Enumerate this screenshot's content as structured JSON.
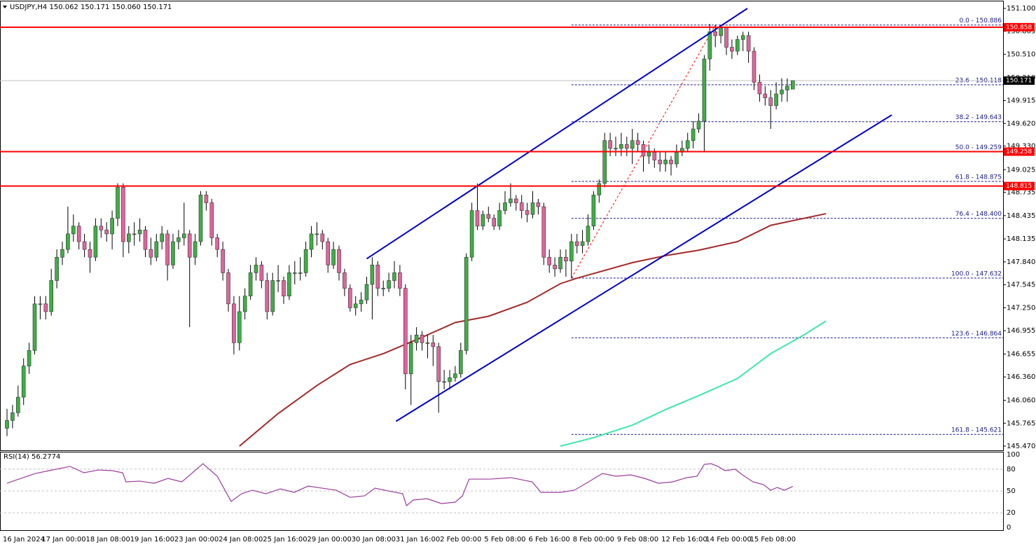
{
  "chart_data": {
    "type": "candlestick",
    "header": "USDJPY,H4  150.062 150.171 150.060 150.171",
    "up_color": "#3cb043",
    "down_color": "#e2649c",
    "ylim": [
      145.416,
      151.19
    ],
    "yticks": [
      {
        "value": 151.1,
        "label": "151.100"
      },
      150.805,
      {
        "value": 150.51,
        "label": "150.510"
      },
      {
        "value": 150.21,
        "label": "150.210"
      },
      149.915,
      {
        "value": 149.62,
        "label": "149.620"
      },
      {
        "value": 149.33,
        "label": "149.330"
      },
      149.025,
      148.735,
      148.435,
      148.135,
      {
        "value": 147.84,
        "label": "147.840"
      },
      147.545,
      {
        "value": 147.25,
        "label": "147.250"
      },
      146.955,
      146.655,
      {
        "value": 146.36,
        "label": "146.360"
      },
      {
        "value": 146.06,
        "label": "146.060"
      },
      145.765,
      {
        "value": 145.47,
        "label": "145.470"
      }
    ],
    "categories": [
      "16 Jan 2024",
      null,
      null,
      null,
      null,
      null,
      null,
      "17 Jan 00:00",
      null,
      null,
      null,
      null,
      null,
      null,
      null,
      "18 Jan 08:00",
      null,
      null,
      null,
      null,
      null,
      null,
      null,
      "19 Jan 16:00",
      null,
      null,
      null,
      null,
      null,
      null,
      null,
      "23 Jan 00:00",
      null,
      null,
      null,
      null,
      null,
      null,
      null,
      "24 Jan 08:00",
      null,
      null,
      null,
      null,
      null,
      null,
      null,
      "25 Jan 16:00",
      null,
      null,
      null,
      null,
      null,
      null,
      null,
      "29 Jan 00:00",
      null,
      null,
      null,
      null,
      null,
      null,
      null,
      "30 Jan 08:00",
      null,
      null,
      null,
      null,
      null,
      null,
      null,
      "31 Jan 16:00",
      null,
      null,
      null,
      null,
      null,
      null,
      null,
      "2 Feb 00:00",
      null,
      null,
      null,
      null,
      null,
      null,
      null,
      "5 Feb 08:00",
      null,
      null,
      null,
      null,
      null,
      null,
      null,
      "6 Feb 16:00",
      null,
      null,
      null,
      null,
      null,
      null,
      null,
      "8 Feb 00:00",
      null,
      null,
      null,
      null,
      null,
      null,
      null,
      "9 Feb 08:00",
      null,
      null,
      null,
      null,
      null,
      null,
      null,
      "12 Feb 16:00",
      null,
      null,
      null,
      null,
      null,
      null,
      null,
      "14 Feb 00:00",
      null,
      null,
      null,
      null,
      null,
      null,
      null,
      "15 Feb 08:00",
      null,
      null,
      null,
      null,
      null,
      null,
      null
    ],
    "candles": [
      [
        145.7,
        145.95,
        145.6,
        145.8
      ],
      [
        145.8,
        146.0,
        145.7,
        145.9
      ],
      [
        145.9,
        146.25,
        145.85,
        146.1
      ],
      [
        146.1,
        146.6,
        146.0,
        146.5
      ],
      [
        146.5,
        146.8,
        146.4,
        146.7
      ],
      [
        146.7,
        147.4,
        146.65,
        147.3
      ],
      [
        147.3,
        147.4,
        147.1,
        147.3
      ],
      [
        147.3,
        147.4,
        147.1,
        147.2
      ],
      [
        147.2,
        147.75,
        147.15,
        147.6
      ],
      [
        147.6,
        148.0,
        147.5,
        147.9
      ],
      [
        147.9,
        148.1,
        147.8,
        148.0
      ],
      [
        148.0,
        148.55,
        147.95,
        148.2
      ],
      [
        148.2,
        148.45,
        148.1,
        148.3
      ],
      [
        148.3,
        148.35,
        148.0,
        148.1
      ],
      [
        148.1,
        148.2,
        147.9,
        148.0
      ],
      [
        148.0,
        148.1,
        147.7,
        147.9
      ],
      [
        147.9,
        148.4,
        147.85,
        148.3
      ],
      [
        148.3,
        148.4,
        148.15,
        148.25
      ],
      [
        148.25,
        148.35,
        148.1,
        148.2
      ],
      [
        148.2,
        148.5,
        148.0,
        148.4
      ],
      [
        148.4,
        148.85,
        148.3,
        148.8
      ],
      [
        148.8,
        148.85,
        147.9,
        148.1
      ],
      [
        148.1,
        148.3,
        147.95,
        148.2
      ],
      [
        148.2,
        148.35,
        148.05,
        148.2
      ],
      [
        148.2,
        148.4,
        148.1,
        148.25
      ],
      [
        148.25,
        148.3,
        147.9,
        148.0
      ],
      [
        148.0,
        148.15,
        147.8,
        147.9
      ],
      [
        147.9,
        148.2,
        147.85,
        148.1
      ],
      [
        148.1,
        148.3,
        148.0,
        148.2
      ],
      [
        148.2,
        148.25,
        147.6,
        147.8
      ],
      [
        147.8,
        148.2,
        147.75,
        148.1
      ],
      [
        148.1,
        148.25,
        148.0,
        148.15
      ],
      [
        148.15,
        148.6,
        148.05,
        148.2
      ],
      [
        148.2,
        148.25,
        147.0,
        147.9
      ],
      [
        147.9,
        148.2,
        147.8,
        148.1
      ],
      [
        148.1,
        148.75,
        148.05,
        148.7
      ],
      [
        148.7,
        148.75,
        148.5,
        148.6
      ],
      [
        148.6,
        148.65,
        148.05,
        148.15
      ],
      [
        148.15,
        148.2,
        147.9,
        148.0
      ],
      [
        148.0,
        148.1,
        147.6,
        147.7
      ],
      [
        147.7,
        147.75,
        147.2,
        147.3
      ],
      [
        147.3,
        147.4,
        146.65,
        146.8
      ],
      [
        146.8,
        147.4,
        146.7,
        147.2
      ],
      [
        147.2,
        147.5,
        147.1,
        147.4
      ],
      [
        147.4,
        147.8,
        147.35,
        147.7
      ],
      [
        147.7,
        147.9,
        147.6,
        147.8
      ],
      [
        147.8,
        147.85,
        147.5,
        147.6
      ],
      [
        147.6,
        147.7,
        147.1,
        147.2
      ],
      [
        147.2,
        147.7,
        147.15,
        147.6
      ],
      [
        147.6,
        147.8,
        147.45,
        147.6
      ],
      [
        147.6,
        147.65,
        147.3,
        147.4
      ],
      [
        147.4,
        147.8,
        147.35,
        147.7
      ],
      [
        147.7,
        147.85,
        147.55,
        147.7
      ],
      [
        147.7,
        147.9,
        147.6,
        147.7
      ],
      [
        147.7,
        148.1,
        147.65,
        148.0
      ],
      [
        148.0,
        148.3,
        147.9,
        148.2
      ],
      [
        148.2,
        148.35,
        148.05,
        148.2
      ],
      [
        148.2,
        148.25,
        148.0,
        148.1
      ],
      [
        148.1,
        148.15,
        147.7,
        147.8
      ],
      [
        147.8,
        148.1,
        147.75,
        148.0
      ],
      [
        148.0,
        148.05,
        147.6,
        147.7
      ],
      [
        147.7,
        147.75,
        147.4,
        147.5
      ],
      [
        147.5,
        147.55,
        147.2,
        147.25
      ],
      [
        147.25,
        147.4,
        147.15,
        147.3
      ],
      [
        147.3,
        147.45,
        147.2,
        147.35
      ],
      [
        147.35,
        147.65,
        147.3,
        147.55
      ],
      [
        147.55,
        147.9,
        147.1,
        147.8
      ],
      [
        147.8,
        147.85,
        147.4,
        147.5
      ],
      [
        147.5,
        147.6,
        147.4,
        147.5
      ],
      [
        147.5,
        147.7,
        147.45,
        147.6
      ],
      [
        147.6,
        147.85,
        147.5,
        147.7
      ],
      [
        147.7,
        147.8,
        147.4,
        147.5
      ],
      [
        147.5,
        147.55,
        146.2,
        146.4
      ],
      [
        146.4,
        146.9,
        146.0,
        146.8
      ],
      [
        146.8,
        147.0,
        146.7,
        146.9
      ],
      [
        146.9,
        146.95,
        146.7,
        146.8
      ],
      [
        146.8,
        146.9,
        146.6,
        146.8
      ],
      [
        146.8,
        146.9,
        146.5,
        146.75
      ],
      [
        146.75,
        146.8,
        145.9,
        146.3
      ],
      [
        146.3,
        146.45,
        146.2,
        146.3
      ],
      [
        146.3,
        146.45,
        146.2,
        146.35
      ],
      [
        146.35,
        146.5,
        146.3,
        146.4
      ],
      [
        146.4,
        146.8,
        146.35,
        146.7
      ],
      [
        146.7,
        147.95,
        146.65,
        147.9
      ],
      [
        147.9,
        148.6,
        147.85,
        148.5
      ],
      [
        148.5,
        148.85,
        148.25,
        148.3
      ],
      [
        148.3,
        148.5,
        148.25,
        148.45
      ],
      [
        148.45,
        148.55,
        148.35,
        148.4
      ],
      [
        148.4,
        148.45,
        148.25,
        148.3
      ],
      [
        148.3,
        148.6,
        148.25,
        148.5
      ],
      [
        148.5,
        148.75,
        148.45,
        148.6
      ],
      [
        148.6,
        148.85,
        148.55,
        148.65
      ],
      [
        148.65,
        148.7,
        148.5,
        148.6
      ],
      [
        148.6,
        148.7,
        148.4,
        148.5
      ],
      [
        148.5,
        148.6,
        148.35,
        148.45
      ],
      [
        148.45,
        148.75,
        148.4,
        148.6
      ],
      [
        148.6,
        148.65,
        148.45,
        148.55
      ],
      [
        148.55,
        148.6,
        147.8,
        147.9
      ],
      [
        147.9,
        148.0,
        147.7,
        147.8
      ],
      [
        147.8,
        147.9,
        147.65,
        147.75
      ],
      [
        147.75,
        148.0,
        147.7,
        147.9
      ],
      [
        147.9,
        148.0,
        147.65,
        147.85
      ],
      [
        147.85,
        148.2,
        147.63,
        148.1
      ],
      [
        148.1,
        148.2,
        147.95,
        148.05
      ],
      [
        148.05,
        148.25,
        147.95,
        148.1
      ],
      [
        148.1,
        148.45,
        148.05,
        148.3
      ],
      [
        148.3,
        148.75,
        148.25,
        148.7
      ],
      [
        148.7,
        148.9,
        148.6,
        148.85
      ],
      [
        148.85,
        149.5,
        148.8,
        149.4
      ],
      [
        149.4,
        149.5,
        149.2,
        149.3
      ],
      [
        149.3,
        149.45,
        149.2,
        149.3
      ],
      [
        149.3,
        149.5,
        149.2,
        149.35
      ],
      [
        149.35,
        149.45,
        149.2,
        149.3
      ],
      [
        149.3,
        149.55,
        149.1,
        149.4
      ],
      [
        149.4,
        149.5,
        149.25,
        149.35
      ],
      [
        149.35,
        149.4,
        149.0,
        149.2
      ],
      [
        149.2,
        149.35,
        149.1,
        149.25
      ],
      [
        149.25,
        149.3,
        149.05,
        149.15
      ],
      [
        149.15,
        149.25,
        149.0,
        149.1
      ],
      [
        149.1,
        149.25,
        149.0,
        149.15
      ],
      [
        149.15,
        149.2,
        148.95,
        149.1
      ],
      [
        149.1,
        149.35,
        149.05,
        149.25
      ],
      [
        149.25,
        149.4,
        149.2,
        149.3
      ],
      [
        149.3,
        149.5,
        149.25,
        149.4
      ],
      [
        149.4,
        149.65,
        149.3,
        149.55
      ],
      [
        149.55,
        149.75,
        149.5,
        149.65
      ],
      [
        149.65,
        150.5,
        149.25,
        150.45
      ],
      [
        150.45,
        150.9,
        150.3,
        150.8
      ],
      [
        150.8,
        150.89,
        150.6,
        150.75
      ],
      [
        150.75,
        150.89,
        150.65,
        150.85
      ],
      [
        150.85,
        150.86,
        150.5,
        150.6
      ],
      [
        150.6,
        150.7,
        150.45,
        150.55
      ],
      [
        150.55,
        150.75,
        150.5,
        150.7
      ],
      [
        150.7,
        150.8,
        150.55,
        150.75
      ],
      [
        150.75,
        150.8,
        150.4,
        150.55
      ],
      [
        150.55,
        150.6,
        150.05,
        150.15
      ],
      [
        150.15,
        150.25,
        149.9,
        150.0
      ],
      [
        150.0,
        150.1,
        149.85,
        149.95
      ],
      [
        149.95,
        150.05,
        149.55,
        149.85
      ],
      [
        149.85,
        150.15,
        149.8,
        150.0
      ],
      [
        150.0,
        150.2,
        149.9,
        150.05
      ],
      [
        150.05,
        150.2,
        149.9,
        150.1
      ],
      [
        150.062,
        150.171,
        150.06,
        150.171
      ]
    ],
    "ma": [
      {
        "color": "#a52a2a",
        "x": [
          42,
          49,
          56,
          62,
          68,
          75,
          81,
          87,
          94,
          100,
          103,
          113,
          119,
          125,
          132,
          138,
          144,
          148
        ],
        "values": [
          145.47,
          145.89,
          146.25,
          146.52,
          146.66,
          146.87,
          147.06,
          147.14,
          147.32,
          147.56,
          147.63,
          147.83,
          147.92,
          147.99,
          148.1,
          148.31,
          148.4,
          148.46
        ]
      },
      {
        "color": "#3ee8a8",
        "x": [
          100,
          106,
          113,
          119,
          125,
          132,
          138,
          144,
          148
        ],
        "values": [
          145.47,
          145.58,
          145.74,
          145.94,
          146.12,
          146.34,
          146.66,
          146.9,
          147.08
        ]
      }
    ],
    "trendlines": [
      {
        "color": "#0000cc",
        "x": [
          65,
          133.8
        ],
        "y": [
          147.88,
          151.1
        ]
      },
      {
        "color": "#0000cc",
        "x": [
          70.3,
          159.9
        ],
        "y": [
          145.79,
          149.73
        ]
      }
    ],
    "hlines": [
      {
        "value": 150.858,
        "color": "#ff0000"
      },
      {
        "value": 149.258,
        "color": "#ff0000"
      },
      {
        "value": 148.815,
        "color": "#ff0000"
      }
    ],
    "current_price": 150.171,
    "fib_anchor": {
      "x": [
        102,
        128
      ],
      "y": [
        147.632,
        150.886
      ],
      "color": "#ff0000"
    },
    "fib_levels": [
      {
        "value": 150.886,
        "label": "0.0 - 150.886"
      },
      {
        "value": 150.118,
        "label": "23.6 - 150.118"
      },
      {
        "value": 149.643,
        "label": "38.2 - 149.643"
      },
      {
        "value": 149.259,
        "label": "50.0 - 149.259"
      },
      {
        "value": 148.875,
        "label": "61.8 - 148.875"
      },
      {
        "value": 148.4,
        "label": "76.4 - 148.400"
      },
      {
        "value": 147.632,
        "label": "100.0 - 147.632"
      },
      {
        "value": 146.864,
        "label": "123.6 - 146.864"
      },
      {
        "value": 145.621,
        "label": "161.8 - 145.621"
      }
    ],
    "rsi": {
      "title": "RSI(14) 56.2774",
      "color": "#9b3c9b",
      "ylim": [
        0,
        100
      ],
      "yticks": [
        100,
        80,
        50,
        20,
        0
      ],
      "x": [
        0,
        2.5,
        5.1,
        7.6,
        11.4,
        13.9,
        16.5,
        19,
        20.9,
        21.5,
        24,
        26.6,
        29.1,
        31.6,
        35.4,
        38,
        40.5,
        42.4,
        44.3,
        46.8,
        49.4,
        51.9,
        54.4,
        57,
        59.5,
        62,
        64.6,
        66.5,
        69.6,
        71.5,
        72.2,
        73.4,
        75.9,
        78.5,
        81,
        82.3,
        83.5,
        87.3,
        91.1,
        94.9,
        96.5,
        100,
        102.5,
        105.1,
        107.6,
        110.1,
        112.7,
        115.2,
        117.7,
        120.3,
        122.8,
        124.7,
        126,
        127.2,
        128.5,
        129.7,
        131.6,
        132.9,
        134.8,
        136.7,
        138,
        139.2,
        140.5,
        142
      ],
      "values": [
        60.6,
        67.3,
        74.0,
        77.9,
        83.7,
        75.0,
        78.8,
        77.9,
        75.0,
        62.5,
        63.5,
        60.6,
        67.3,
        62.5,
        87.5,
        70.2,
        35.6,
        46.2,
        51.0,
        46.2,
        52.9,
        48.1,
        56.7,
        53.8,
        51.0,
        41.3,
        43.3,
        53.8,
        49.0,
        46.2,
        29.8,
        37.5,
        39.4,
        32.7,
        34.6,
        43.3,
        66.3,
        66.3,
        68.3,
        62.5,
        48.1,
        48.1,
        51.0,
        62.5,
        74.0,
        70.2,
        72.1,
        67.3,
        60.6,
        62.5,
        68.3,
        70.2,
        86.5,
        87.5,
        83.7,
        77.9,
        79.8,
        72.1,
        62.5,
        58.7,
        51.0,
        54.8,
        51.0,
        56.2774
      ]
    }
  }
}
